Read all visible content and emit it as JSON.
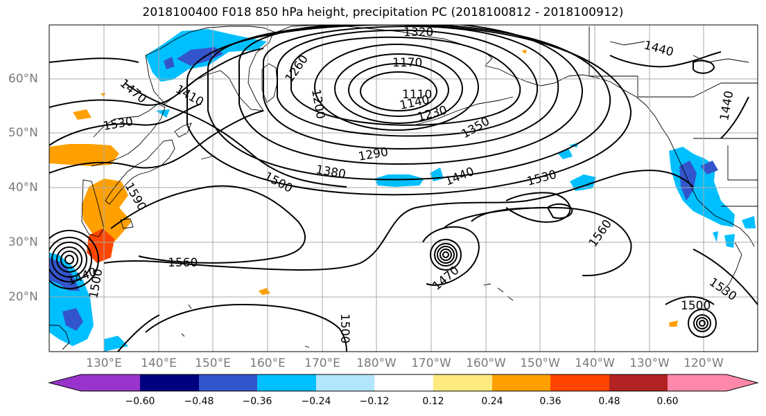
{
  "title": "2018100400 F018 850 hPa height, precipitation PC (2018100812 - 2018100912)",
  "latitude_labels": [
    "60°N",
    "50°N",
    "40°N",
    "30°N",
    "20°N"
  ],
  "longitude_labels": [
    "130°E",
    "140°E",
    "150°E",
    "160°E",
    "170°E",
    "180°W",
    "170°W",
    "160°W",
    "150°W",
    "140°W",
    "130°W",
    "120°W"
  ],
  "contour_labels": [
    "1320",
    "1440",
    "1170",
    "1260",
    "1110",
    "1140",
    "1200",
    "1230",
    "1410",
    "1470",
    "1350",
    "1530",
    "1290",
    "1380",
    "1440",
    "1530",
    "1500",
    "1590",
    "1560",
    "1560",
    "1470",
    "1440",
    "1500",
    "1500",
    "1530",
    "1500",
    "1440"
  ],
  "colorbar": {
    "labels": [
      "−0.60",
      "−0.48",
      "−0.36",
      "−0.24",
      "−0.12",
      "0.12",
      "0.24",
      "0.36",
      "0.48",
      "0.60"
    ],
    "colors": [
      "#9933cc",
      "#000080",
      "#3355cc",
      "#00bfff",
      "#b3e5fc",
      "#ffffff",
      "#ffea80",
      "#ffa000",
      "#ff4500",
      "#b22222",
      "#ff88aa"
    ]
  },
  "colors": {
    "negative_strong": "#3355cc",
    "negative_mid": "#00bfff",
    "positive_mid": "#ffa000",
    "positive_strong": "#ff4500",
    "contour": "#000000",
    "coast": "#000000",
    "grid": "#aaaaaa"
  }
}
